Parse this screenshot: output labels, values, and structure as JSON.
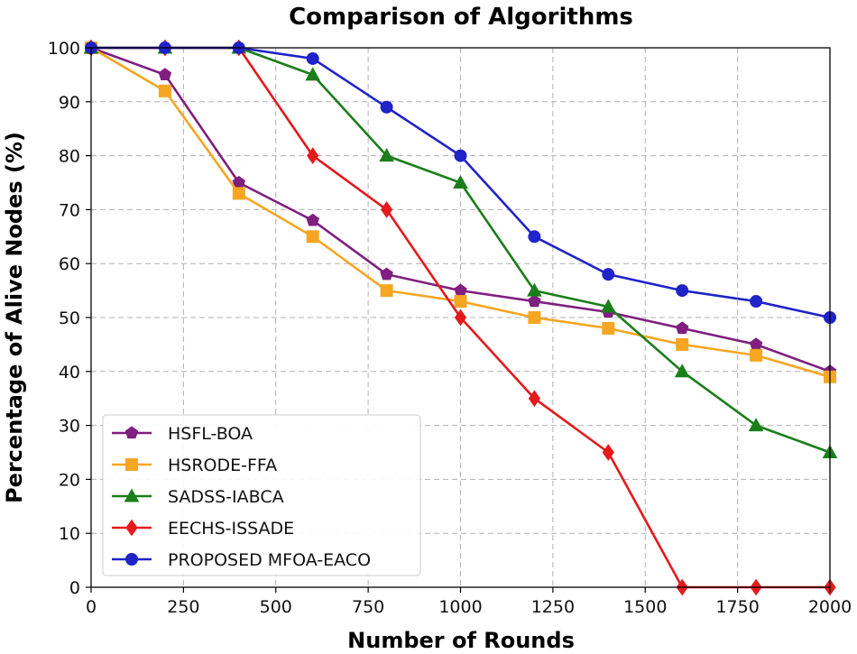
{
  "chart_data": {
    "type": "line",
    "title": "Comparison of Algorithms",
    "xlabel": "Number of Rounds",
    "ylabel": "Percentage of Alive Nodes (%)",
    "xlim": [
      0,
      2000
    ],
    "ylim": [
      0,
      100
    ],
    "xticks": [
      0,
      250,
      500,
      750,
      1000,
      1250,
      1500,
      1750,
      2000
    ],
    "yticks": [
      0,
      10,
      20,
      30,
      40,
      50,
      60,
      70,
      80,
      90,
      100
    ],
    "grid": true,
    "legend_position": "lower-left",
    "x": [
      0,
      200,
      400,
      600,
      800,
      1000,
      1200,
      1400,
      1600,
      1800,
      2000
    ],
    "series": [
      {
        "name": "HSFL-BOA",
        "color": "#7f1f7f",
        "marker": "pentagon",
        "values": [
          100,
          95,
          75,
          68,
          58,
          55,
          53,
          51,
          48,
          45,
          40
        ]
      },
      {
        "name": "HSRODE-FFA",
        "color": "#f5a623",
        "marker": "square",
        "values": [
          100,
          92,
          73,
          65,
          55,
          53,
          50,
          48,
          45,
          43,
          39
        ]
      },
      {
        "name": "SADSS-IABCA",
        "color": "#1a7f1a",
        "marker": "triangle",
        "values": [
          100,
          100,
          100,
          95,
          80,
          75,
          55,
          52,
          40,
          30,
          25
        ]
      },
      {
        "name": "EECHS-ISSADE",
        "color": "#e41a1c",
        "marker": "diamond",
        "values": [
          100,
          100,
          100,
          80,
          70,
          50,
          35,
          25,
          0,
          0,
          0
        ]
      },
      {
        "name": "PROPOSED MFOA-EACO",
        "color": "#1f23c8",
        "marker": "circle",
        "values": [
          100,
          100,
          100,
          98,
          89,
          80,
          65,
          58,
          55,
          53,
          50
        ]
      }
    ]
  }
}
